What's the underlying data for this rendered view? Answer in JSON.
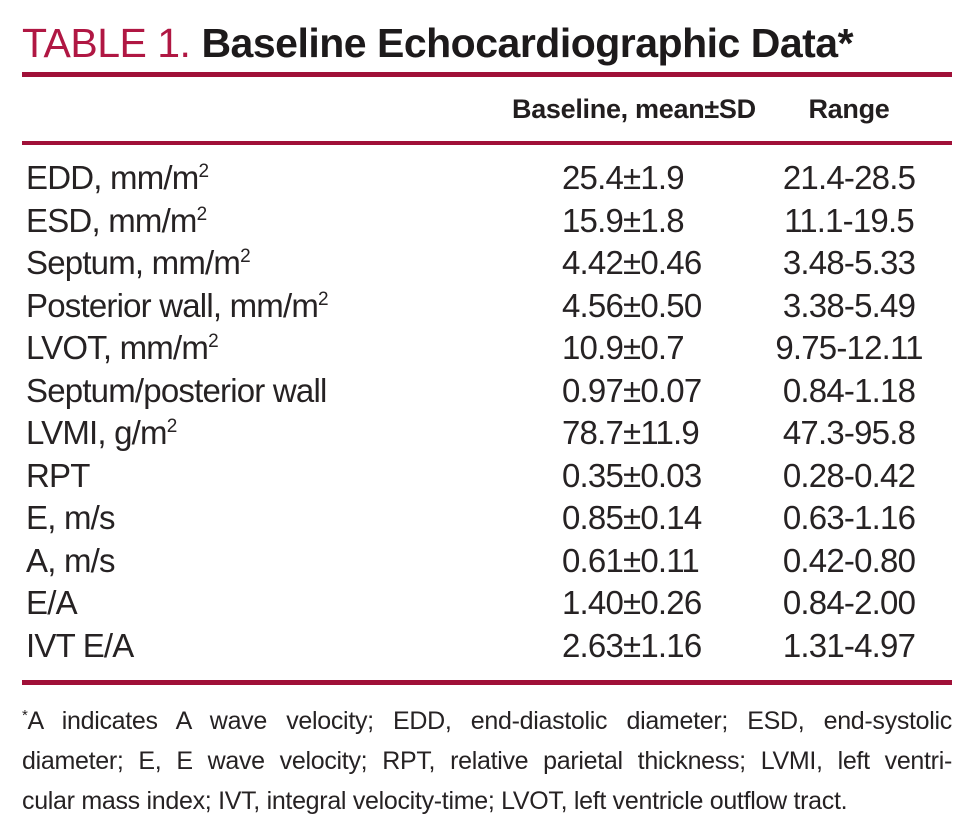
{
  "title": {
    "label": "TABLE 1.",
    "text": "Baseline Echocardiographic Data",
    "asterisk": "*"
  },
  "colors": {
    "title_red": "#b01743",
    "rule_red": "#a01038",
    "text": "#262223"
  },
  "table": {
    "headers": {
      "baseline": "Baseline, mean±SD",
      "range": "Range"
    },
    "rows": [
      {
        "label": "EDD, mm/m",
        "sup": "2",
        "baseline": "25.4±1.9",
        "range": "21.4-28.5"
      },
      {
        "label": "ESD, mm/m",
        "sup": "2",
        "baseline": "15.9±1.8",
        "range": "11.1-19.5"
      },
      {
        "label": "Septum, mm/m",
        "sup": "2",
        "baseline": "4.42±0.46",
        "range": "3.48-5.33"
      },
      {
        "label": "Posterior wall, mm/m",
        "sup": "2",
        "baseline": "4.56±0.50",
        "range": "3.38-5.49"
      },
      {
        "label": "LVOT, mm/m",
        "sup": "2",
        "baseline": "10.9±0.7",
        "range": "9.75-12.11"
      },
      {
        "label": "Septum/posterior wall",
        "sup": "",
        "baseline": "0.97±0.07",
        "range": "0.84-1.18"
      },
      {
        "label": "LVMI, g/m",
        "sup": "2",
        "baseline": "78.7±11.9",
        "range": "47.3-95.8"
      },
      {
        "label": "RPT",
        "sup": "",
        "baseline": "0.35±0.03",
        "range": "0.28-0.42"
      },
      {
        "label": "E, m/s",
        "sup": "",
        "baseline": "0.85±0.14",
        "range": "0.63-1.16"
      },
      {
        "label": "A, m/s",
        "sup": "",
        "baseline": "0.61±0.11",
        "range": "0.42-0.80"
      },
      {
        "label": "E/A",
        "sup": "",
        "baseline": "1.40±0.26",
        "range": "0.84-2.00"
      },
      {
        "label": "IVT E/A",
        "sup": "",
        "baseline": "2.63±1.16",
        "range": "1.31-4.97"
      }
    ]
  },
  "footnote": {
    "asterisk": "*",
    "lines": [
      "A indicates A wave velocity; EDD, end-diastolic diameter; ESD, end-systolic",
      "diameter; E, E wave velocity; RPT, relative parietal thickness; LVMI, left ventri-",
      "cular mass index; IVT, integral velocity-time; LVOT, left ventricle outflow tract."
    ]
  }
}
